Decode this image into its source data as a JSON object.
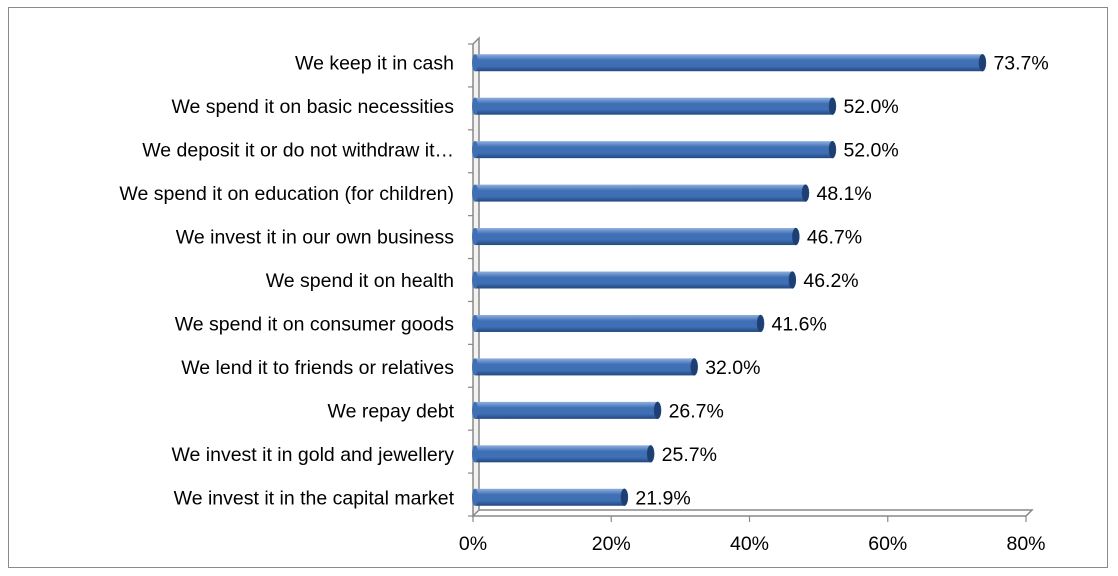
{
  "chart_data": {
    "type": "bar",
    "orientation": "horizontal",
    "categories": [
      "We keep it in cash",
      "We spend it on basic necessities",
      "We deposit it or do not withdraw it…",
      "We spend it on education (for children)",
      "We invest it in our own business",
      "We spend it on health",
      "We spend it on consumer goods",
      "We lend it to friends or relatives",
      "We repay debt",
      "We invest it in gold and jewellery",
      "We invest it in the capital market"
    ],
    "values": [
      73.7,
      52.0,
      52.0,
      48.1,
      46.7,
      46.2,
      41.6,
      32.0,
      26.7,
      25.7,
      21.9
    ],
    "value_labels": [
      "73.7%",
      "52.0%",
      "52.0%",
      "48.1%",
      "46.7%",
      "46.2%",
      "41.6%",
      "32.0%",
      "26.7%",
      "25.7%",
      "21.9%"
    ],
    "xlim": [
      0,
      80
    ],
    "xticks": [
      0,
      20,
      40,
      60,
      80
    ],
    "xtick_labels": [
      "0%",
      "20%",
      "40%",
      "60%",
      "80%"
    ],
    "grid": false,
    "legend": false,
    "colors": {
      "bar_fill": "#3f6fb5",
      "bar_highlight": "#8fb0de",
      "bar_shadow": "#22487f",
      "bar_end": "#1d3f73",
      "axis": "#888888"
    }
  }
}
